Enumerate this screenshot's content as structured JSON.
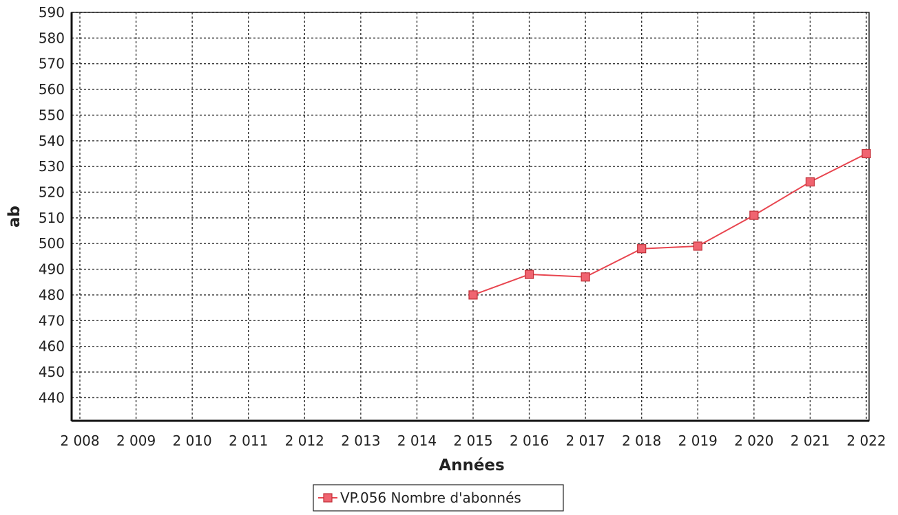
{
  "chart_data": {
    "type": "line",
    "title": "",
    "xlabel": "Années",
    "ylabel": "ab",
    "x": [
      "2 008",
      "2 009",
      "2 010",
      "2 011",
      "2 012",
      "2 013",
      "2 014",
      "2 015",
      "2 016",
      "2 017",
      "2 018",
      "2 019",
      "2 020",
      "2 021",
      "2 022"
    ],
    "xlim": [
      2008,
      2022
    ],
    "ylim": [
      431,
      590
    ],
    "yticks": [
      440,
      450,
      460,
      470,
      480,
      490,
      500,
      510,
      520,
      530,
      540,
      550,
      560,
      570,
      580,
      590
    ],
    "grid": true,
    "legend_position": "bottom-center",
    "series": [
      {
        "name": "VP.056 Nombre d'abonnés",
        "color": "#e8454f",
        "marker": "square",
        "points": [
          {
            "x": 2015,
            "y": 480
          },
          {
            "x": 2016,
            "y": 488
          },
          {
            "x": 2017,
            "y": 487
          },
          {
            "x": 2018,
            "y": 498
          },
          {
            "x": 2019,
            "y": 499
          },
          {
            "x": 2020,
            "y": 511
          },
          {
            "x": 2021,
            "y": 524
          },
          {
            "x": 2022,
            "y": 535
          }
        ]
      }
    ]
  }
}
